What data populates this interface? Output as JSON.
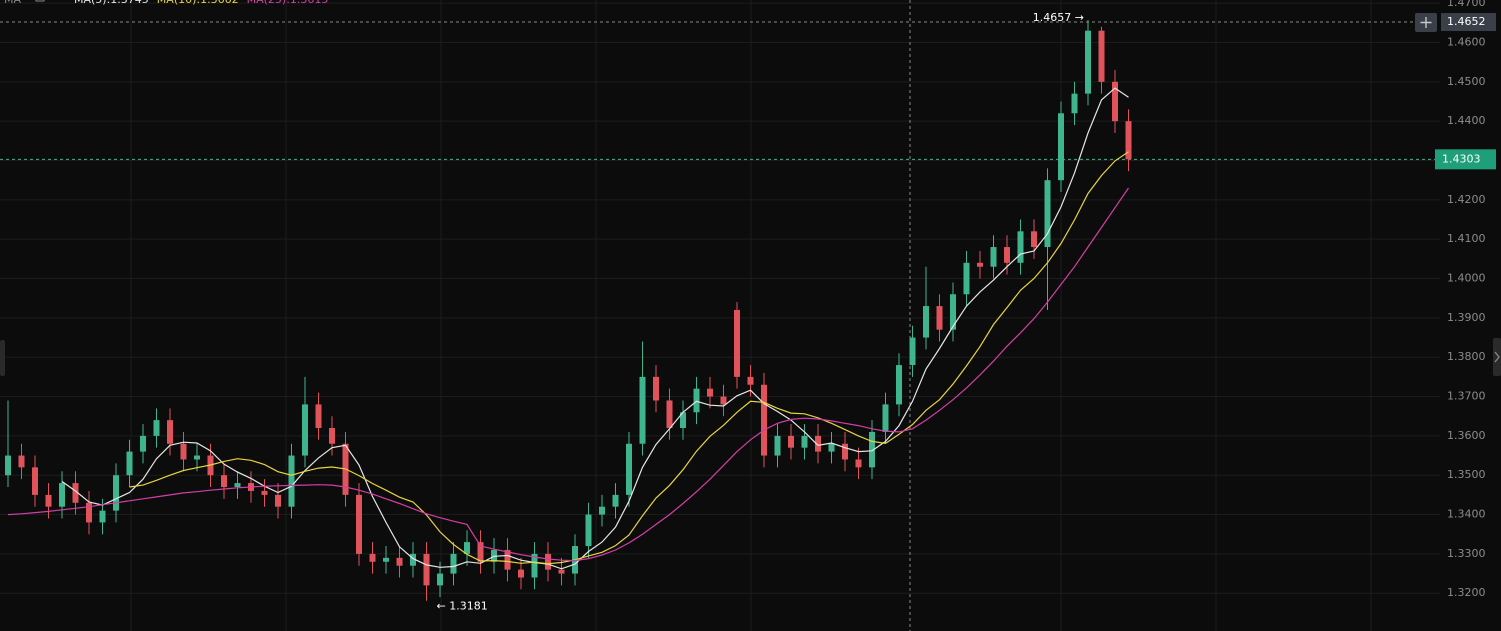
{
  "chart_data": {
    "type": "candlestick",
    "indicator": "MA",
    "up_color": "#3fb58f",
    "down_color": "#e0535b",
    "ylim": [
      1.3104,
      1.4708
    ],
    "yticks": [
      {
        "value": 1.47,
        "label": "1.4700"
      },
      {
        "value": 1.46,
        "label": "1.4600"
      },
      {
        "value": 1.45,
        "label": "1.4500"
      },
      {
        "value": 1.44,
        "label": "1.4400"
      },
      {
        "value": 1.43,
        "label": "1.4300"
      },
      {
        "value": 1.42,
        "label": "1.4200"
      },
      {
        "value": 1.41,
        "label": "1.4100"
      },
      {
        "value": 1.4,
        "label": "1.4000"
      },
      {
        "value": 1.39,
        "label": "1.3900"
      },
      {
        "value": 1.38,
        "label": "1.3800"
      },
      {
        "value": 1.37,
        "label": "1.3700"
      },
      {
        "value": 1.36,
        "label": "1.3600"
      },
      {
        "value": 1.35,
        "label": "1.3500"
      },
      {
        "value": 1.34,
        "label": "1.3400"
      },
      {
        "value": 1.33,
        "label": "1.3300"
      },
      {
        "value": 1.32,
        "label": "1.3200"
      }
    ],
    "grid": true,
    "open": [
      1.35,
      1.355,
      1.352,
      1.345,
      1.342,
      1.348,
      1.343,
      1.338,
      1.341,
      1.35,
      1.356,
      1.36,
      1.364,
      1.358,
      1.354,
      1.355,
      1.35,
      1.347,
      1.348,
      1.346,
      1.345,
      1.342,
      1.355,
      1.368,
      1.362,
      1.358,
      1.345,
      1.33,
      1.328,
      1.329,
      1.327,
      1.33,
      1.322,
      1.325,
      1.33,
      1.333,
      1.328,
      1.331,
      1.326,
      1.324,
      1.33,
      1.326,
      1.325,
      1.332,
      1.34,
      1.342,
      1.345,
      1.358,
      1.375,
      1.369,
      1.362,
      1.366,
      1.372,
      1.37,
      1.392,
      1.375,
      1.373,
      1.355,
      1.36,
      1.357,
      1.36,
      1.356,
      1.358,
      1.354,
      1.352,
      1.361,
      1.368,
      1.378,
      1.385,
      1.393,
      1.387,
      1.396,
      1.404,
      1.403,
      1.408,
      1.404,
      1.412,
      1.408,
      1.425,
      1.442,
      1.447,
      1.463,
      1.45,
      1.44
    ],
    "high": [
      1.369,
      1.358,
      1.355,
      1.348,
      1.351,
      1.351,
      1.346,
      1.344,
      1.353,
      1.359,
      1.363,
      1.367,
      1.367,
      1.361,
      1.358,
      1.358,
      1.353,
      1.351,
      1.351,
      1.349,
      1.348,
      1.358,
      1.375,
      1.371,
      1.365,
      1.361,
      1.348,
      1.333,
      1.332,
      1.332,
      1.333,
      1.333,
      1.328,
      1.333,
      1.336,
      1.336,
      1.334,
      1.334,
      1.329,
      1.333,
      1.333,
      1.329,
      1.335,
      1.343,
      1.345,
      1.348,
      1.361,
      1.384,
      1.378,
      1.372,
      1.369,
      1.375,
      1.375,
      1.373,
      1.394,
      1.378,
      1.376,
      1.363,
      1.363,
      1.363,
      1.363,
      1.361,
      1.361,
      1.357,
      1.364,
      1.371,
      1.381,
      1.388,
      1.403,
      1.396,
      1.399,
      1.407,
      1.407,
      1.411,
      1.411,
      1.415,
      1.415,
      1.428,
      1.445,
      1.45,
      1.4657,
      1.464,
      1.453,
      1.443
    ],
    "low": [
      1.347,
      1.349,
      1.342,
      1.339,
      1.339,
      1.34,
      1.335,
      1.335,
      1.338,
      1.347,
      1.353,
      1.357,
      1.355,
      1.351,
      1.351,
      1.347,
      1.344,
      1.344,
      1.343,
      1.342,
      1.339,
      1.339,
      1.352,
      1.359,
      1.355,
      1.342,
      1.327,
      1.325,
      1.325,
      1.324,
      1.324,
      1.3181,
      1.319,
      1.322,
      1.327,
      1.325,
      1.325,
      1.323,
      1.321,
      1.321,
      1.323,
      1.322,
      1.322,
      1.329,
      1.337,
      1.339,
      1.342,
      1.355,
      1.366,
      1.359,
      1.359,
      1.363,
      1.367,
      1.365,
      1.372,
      1.37,
      1.352,
      1.352,
      1.354,
      1.354,
      1.353,
      1.353,
      1.351,
      1.349,
      1.349,
      1.358,
      1.365,
      1.375,
      1.382,
      1.384,
      1.384,
      1.393,
      1.4,
      1.4,
      1.401,
      1.401,
      1.405,
      1.392,
      1.422,
      1.439,
      1.444,
      1.447,
      1.437,
      1.4273
    ],
    "close": [
      1.355,
      1.352,
      1.345,
      1.342,
      1.348,
      1.343,
      1.338,
      1.341,
      1.35,
      1.356,
      1.36,
      1.364,
      1.358,
      1.354,
      1.355,
      1.35,
      1.347,
      1.348,
      1.346,
      1.345,
      1.342,
      1.355,
      1.368,
      1.362,
      1.358,
      1.345,
      1.33,
      1.328,
      1.329,
      1.327,
      1.33,
      1.322,
      1.325,
      1.33,
      1.333,
      1.328,
      1.331,
      1.326,
      1.324,
      1.33,
      1.326,
      1.325,
      1.332,
      1.34,
      1.342,
      1.345,
      1.358,
      1.375,
      1.369,
      1.362,
      1.366,
      1.372,
      1.37,
      1.368,
      1.375,
      1.373,
      1.355,
      1.36,
      1.357,
      1.36,
      1.356,
      1.358,
      1.354,
      1.352,
      1.361,
      1.368,
      1.378,
      1.385,
      1.393,
      1.387,
      1.396,
      1.404,
      1.403,
      1.408,
      1.404,
      1.412,
      1.408,
      1.425,
      1.442,
      1.447,
      1.463,
      1.45,
      1.44,
      1.4303
    ],
    "series": [
      {
        "name": "MA(5):1.3745",
        "color": "#e6e6e6",
        "values": [
          null,
          null,
          null,
          null,
          1.3484,
          1.346,
          1.3432,
          1.3424,
          1.344,
          1.3456,
          1.349,
          1.3542,
          1.3576,
          1.3584,
          1.3582,
          1.3562,
          1.3528,
          1.3508,
          1.3492,
          1.3472,
          1.3456,
          1.3472,
          1.3512,
          1.3544,
          1.357,
          1.3576,
          1.3526,
          1.3446,
          1.338,
          1.3318,
          1.3288,
          1.3272,
          1.3266,
          1.3268,
          1.328,
          1.3276,
          1.3294,
          1.3296,
          1.3284,
          1.3278,
          1.3274,
          1.3262,
          1.3274,
          1.3306,
          1.333,
          1.3368,
          1.3434,
          1.352,
          1.3578,
          1.3618,
          1.366,
          1.3688,
          1.3678,
          1.3676,
          1.3702,
          1.3716,
          1.3682,
          1.3662,
          1.364,
          1.361,
          1.3576,
          1.3582,
          1.357,
          1.356,
          1.3562,
          1.3586,
          1.3626,
          1.3688,
          1.377,
          1.3822,
          1.3878,
          1.393,
          1.3966,
          1.3996,
          1.403,
          1.4062,
          1.407,
          1.4114,
          1.4182,
          1.4268,
          1.437,
          1.4454,
          1.4484,
          1.4461
        ]
      },
      {
        "name": "MA(10):1.3662",
        "color": "#e8d33f",
        "values": [
          null,
          null,
          null,
          null,
          null,
          null,
          null,
          null,
          null,
          1.347,
          1.3475,
          1.3487,
          1.35,
          1.3512,
          1.3519,
          1.3526,
          1.3535,
          1.3542,
          1.3538,
          1.3527,
          1.3509,
          1.35,
          1.351,
          1.3518,
          1.3521,
          1.3516,
          1.3499,
          1.3479,
          1.3462,
          1.3444,
          1.3432,
          1.3399,
          1.3356,
          1.3324,
          1.3299,
          1.3282,
          1.3283,
          1.3281,
          1.3276,
          1.3279,
          1.3275,
          1.3278,
          1.3285,
          1.3295,
          1.3304,
          1.3321,
          1.3348,
          1.3397,
          1.3442,
          1.3474,
          1.3514,
          1.3561,
          1.3599,
          1.3627,
          1.366,
          1.3688,
          1.3685,
          1.367,
          1.3658,
          1.3656,
          1.3646,
          1.3632,
          1.3616,
          1.36,
          1.3586,
          1.3581,
          1.3604,
          1.3629,
          1.3665,
          1.3692,
          1.3732,
          1.3778,
          1.3827,
          1.3883,
          1.3926,
          1.397,
          1.4,
          1.404,
          1.4089,
          1.4149,
          1.4216,
          1.4262,
          1.4299,
          1.4322
        ]
      },
      {
        "name": "MA(25):1.3615",
        "color": "#d23fa6",
        "values": [
          1.34,
          1.3402,
          1.3405,
          1.3408,
          1.3412,
          1.3416,
          1.342,
          1.3425,
          1.343,
          1.3435,
          1.344,
          1.3445,
          1.345,
          1.3455,
          1.3458,
          1.3462,
          1.3465,
          1.3468,
          1.347,
          1.3472,
          1.3473,
          1.3474,
          1.3475,
          1.3476,
          1.3475,
          1.347,
          1.3462,
          1.3452,
          1.344,
          1.3428,
          1.3415,
          1.3402,
          1.3392,
          1.3383,
          1.3375,
          1.332,
          1.3312,
          1.3305,
          1.3298,
          1.3292,
          1.3287,
          1.3284,
          1.3283,
          1.3288,
          1.3297,
          1.331,
          1.3328,
          1.335,
          1.3375,
          1.34,
          1.3428,
          1.3458,
          1.349,
          1.3525,
          1.356,
          1.359,
          1.3615,
          1.3632,
          1.3642,
          1.3645,
          1.3643,
          1.3638,
          1.3632,
          1.3626,
          1.3618,
          1.3612,
          1.361,
          1.3618,
          1.364,
          1.3665,
          1.3692,
          1.3722,
          1.3755,
          1.379,
          1.3828,
          1.3862,
          1.3898,
          1.394,
          1.3985,
          1.403,
          1.408,
          1.413,
          1.418,
          1.423
        ]
      }
    ],
    "annotations": [
      "1.4657 →",
      "← 1.3181"
    ],
    "crosshair_price": {
      "value": 1.4652,
      "label": "1.4652"
    },
    "last_price": {
      "value": 1.4303,
      "label": "1.4303"
    }
  }
}
